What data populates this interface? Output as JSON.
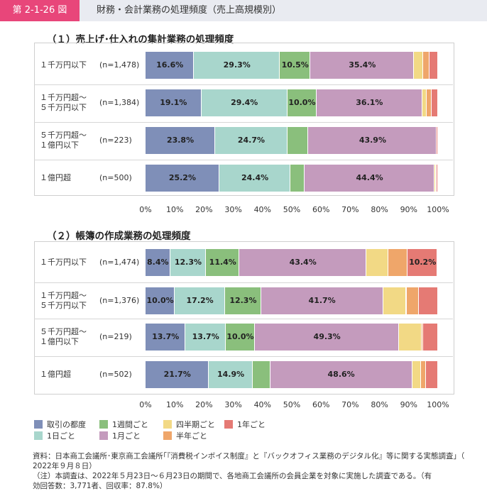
{
  "header": {
    "badge": "第 2-1-26 図",
    "title": "財務・会計業務の処理頻度（売上高規模別）"
  },
  "legend": [
    {
      "name": "取引の都度",
      "color": "#7f8fb8"
    },
    {
      "name": "1週間ごと",
      "color": "#8abf7c"
    },
    {
      "name": "四半期ごと",
      "color": "#f2d985"
    },
    {
      "name": "1年ごと",
      "color": "#e57a74"
    },
    {
      "name": "1日ごと",
      "color": "#a8d6cc"
    },
    {
      "name": "1月ごと",
      "color": "#c49bbd"
    },
    {
      "name": "半年ごと",
      "color": "#efa66a"
    }
  ],
  "chart_data": [
    {
      "type": "bar",
      "orientation": "horizontal",
      "stacked": true,
      "title": "（１）売上げ･仕入れの集計業務の処理頻度",
      "categories": [
        "１千万円以下",
        "１千万円超～\n５千万円以下",
        "５千万円超～\n１億円以下",
        "１億円超"
      ],
      "n": [
        "(n=1,478)",
        "(n=1,384)",
        "(n=223)",
        "(n=500)"
      ],
      "xlim": [
        0,
        100
      ],
      "xticks": [
        "0%",
        "10%",
        "20%",
        "30%",
        "40%",
        "50%",
        "60%",
        "70%",
        "80%",
        "90%",
        "100%"
      ],
      "series": [
        {
          "name": "取引の都度",
          "values": [
            16.6,
            19.1,
            23.8,
            25.2
          ],
          "labels": [
            "16.6%",
            "19.1%",
            "23.8%",
            "25.2%"
          ]
        },
        {
          "name": "1日ごと",
          "values": [
            29.3,
            29.4,
            24.7,
            24.4
          ],
          "labels": [
            "29.3%",
            "29.4%",
            "24.7%",
            "24.4%"
          ]
        },
        {
          "name": "1週間ごと",
          "values": [
            10.5,
            10.0,
            7.2,
            4.8
          ],
          "labels": [
            "10.5%",
            "10.0%",
            "",
            ""
          ]
        },
        {
          "name": "1月ごと",
          "values": [
            35.4,
            36.1,
            43.9,
            44.4
          ],
          "labels": [
            "35.4%",
            "36.1%",
            "43.9%",
            "44.4%"
          ]
        },
        {
          "name": "四半期ごと",
          "values": [
            3.2,
            1.5,
            0.0,
            0.5
          ],
          "labels": [
            "",
            "",
            "",
            ""
          ]
        },
        {
          "name": "半年ごと",
          "values": [
            2.2,
            1.8,
            0.0,
            0.3
          ],
          "labels": [
            "",
            "",
            "",
            ""
          ]
        },
        {
          "name": "1年ごと",
          "values": [
            2.8,
            2.1,
            0.4,
            0.4
          ],
          "labels": [
            "",
            "",
            "",
            ""
          ]
        }
      ]
    },
    {
      "type": "bar",
      "orientation": "horizontal",
      "stacked": true,
      "title": "（２）帳簿の作成業務の処理頻度",
      "categories": [
        "１千万円以下",
        "１千万円超～\n５千万円以下",
        "５千万円超～\n１億円以下",
        "１億円超"
      ],
      "n": [
        "(n=1,474)",
        "(n=1,376)",
        "(n=219)",
        "(n=502)"
      ],
      "xlim": [
        0,
        100
      ],
      "xticks": [
        "0%",
        "10%",
        "20%",
        "30%",
        "40%",
        "50%",
        "60%",
        "70%",
        "80%",
        "90%",
        "100%"
      ],
      "series": [
        {
          "name": "取引の都度",
          "values": [
            8.4,
            10.0,
            13.7,
            21.7
          ],
          "labels": [
            "8.4%",
            "10.0%",
            "13.7%",
            "21.7%"
          ]
        },
        {
          "name": "1日ごと",
          "values": [
            12.3,
            17.2,
            13.7,
            14.9
          ],
          "labels": [
            "12.3%",
            "17.2%",
            "13.7%",
            "14.9%"
          ]
        },
        {
          "name": "1週間ごと",
          "values": [
            11.4,
            12.3,
            10.0,
            6.0
          ],
          "labels": [
            "11.4%",
            "12.3%",
            "10.0%",
            ""
          ]
        },
        {
          "name": "1月ごと",
          "values": [
            43.4,
            41.7,
            49.3,
            48.6
          ],
          "labels": [
            "43.4%",
            "41.7%",
            "49.3%",
            "48.6%"
          ]
        },
        {
          "name": "四半期ごと",
          "values": [
            7.5,
            8.0,
            7.8,
            3.0
          ],
          "labels": [
            "",
            "",
            "",
            ""
          ]
        },
        {
          "name": "半年ごと",
          "values": [
            6.6,
            4.2,
            0.5,
            1.7
          ],
          "labels": [
            "",
            "",
            "",
            ""
          ]
        },
        {
          "name": "1年ごと",
          "values": [
            10.2,
            6.6,
            5.0,
            4.1
          ],
          "labels": [
            "10.2%",
            "",
            "",
            ""
          ]
        }
      ]
    }
  ],
  "notes": {
    "source_line1": "資料：日本商工会議所･東京商工会議所｢『消費税インボイス制度』と『バックオフィス業務のデジタル化』等に関する実態調査｣（",
    "source_line2": "2022年９月８日）",
    "note_line1": "（注）本調査は、2022年５月23日～６月23日の期間で、各地商工会議所の会員企業を対象に実施した調査である。（有",
    "note_line2": "効回答数：3,771者、回収率：87.8%）"
  }
}
